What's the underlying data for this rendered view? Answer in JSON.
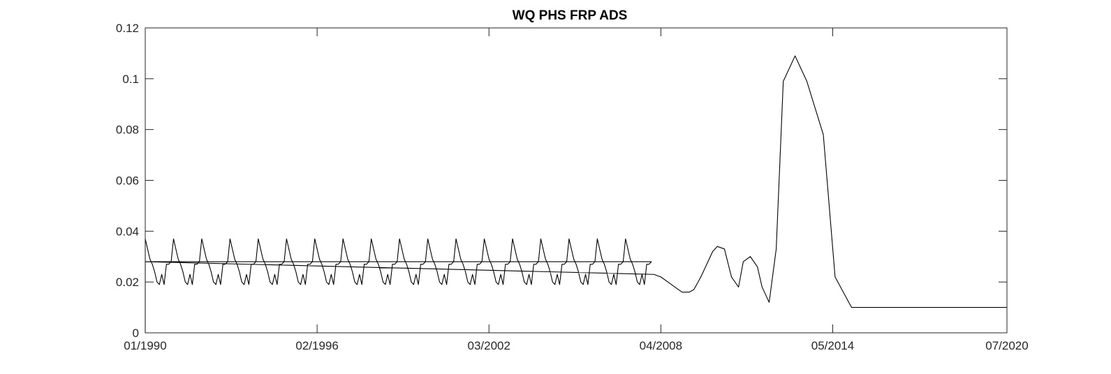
{
  "chart_data": {
    "type": "line",
    "title": "WQ PHS FRP ADS",
    "xlabel": "",
    "ylabel": "",
    "x_axis_type": "date",
    "xlim": [
      "1990-01",
      "2020-07"
    ],
    "ylim": [
      0,
      0.12
    ],
    "xticks": [
      {
        "date": "1990-01",
        "label": "01/1990"
      },
      {
        "date": "1996-02",
        "label": "02/1996"
      },
      {
        "date": "2002-03",
        "label": "03/2002"
      },
      {
        "date": "2008-04",
        "label": "04/2008"
      },
      {
        "date": "2014-05",
        "label": "05/2014"
      },
      {
        "date": "2020-07",
        "label": "07/2020"
      }
    ],
    "yticks": [
      {
        "value": 0,
        "label": "0"
      },
      {
        "value": 0.02,
        "label": "0.02"
      },
      {
        "value": 0.04,
        "label": "0.04"
      },
      {
        "value": 0.06,
        "label": "0.06"
      },
      {
        "value": 0.08,
        "label": "0.08"
      },
      {
        "value": 0.1,
        "label": "0.1"
      },
      {
        "value": 0.12,
        "label": "0.12"
      }
    ],
    "grid": false,
    "legend": "none",
    "line_color": "#000000",
    "series": [
      {
        "seasonal_monthly_cycle": [
          0.037,
          0.033,
          0.029,
          0.027,
          0.024,
          0.02,
          0.019,
          0.023,
          0.019,
          0.027,
          0.027,
          0.028
        ],
        "seasonal_cycle_years": [
          "1990",
          "2007"
        ],
        "x": [
          "1990-01",
          "2008-01",
          "2008-04",
          "2008-07",
          "2008-10",
          "2009-01",
          "2009-04",
          "2009-06",
          "2009-09",
          "2009-12",
          "2010-02",
          "2010-04",
          "2010-07",
          "2010-10",
          "2011-01",
          "2011-03",
          "2011-06",
          "2011-09",
          "2011-11",
          "2012-02",
          "2012-05",
          "2012-08",
          "2013-01",
          "2013-06",
          "2014-01",
          "2014-06",
          "2015-01",
          "2015-06",
          "2016-01",
          "2016-06",
          "2016-09",
          "2016-12",
          "2017-02",
          "2017-05",
          "2017-08",
          "2017-10",
          "2018-01",
          "2018-03",
          "2018-05",
          "2018-07",
          "2018-09",
          "2018-11",
          "2019-01",
          "2019-03",
          "2019-06",
          "2019-09",
          "2019-11",
          "2020-01",
          "2020-04",
          "2020-07"
        ],
        "y": [
          0.028,
          0.023,
          0.022,
          0.02,
          0.018,
          0.016,
          0.016,
          0.017,
          0.022,
          0.028,
          0.032,
          0.034,
          0.033,
          0.022,
          0.018,
          0.028,
          0.03,
          0.026,
          0.018,
          0.012,
          0.033,
          0.099,
          0.109,
          0.099,
          0.078,
          0.022,
          0.01,
          0.01,
          0.01,
          0.01,
          0.01,
          0.01,
          0.01,
          0.01,
          0.01,
          0.01,
          0.01,
          0.01,
          0.01,
          0.01,
          0.01,
          0.01,
          0.01,
          0.01,
          0.01,
          0.01,
          0.01,
          0.01,
          0.01,
          0.01
        ]
      }
    ]
  }
}
